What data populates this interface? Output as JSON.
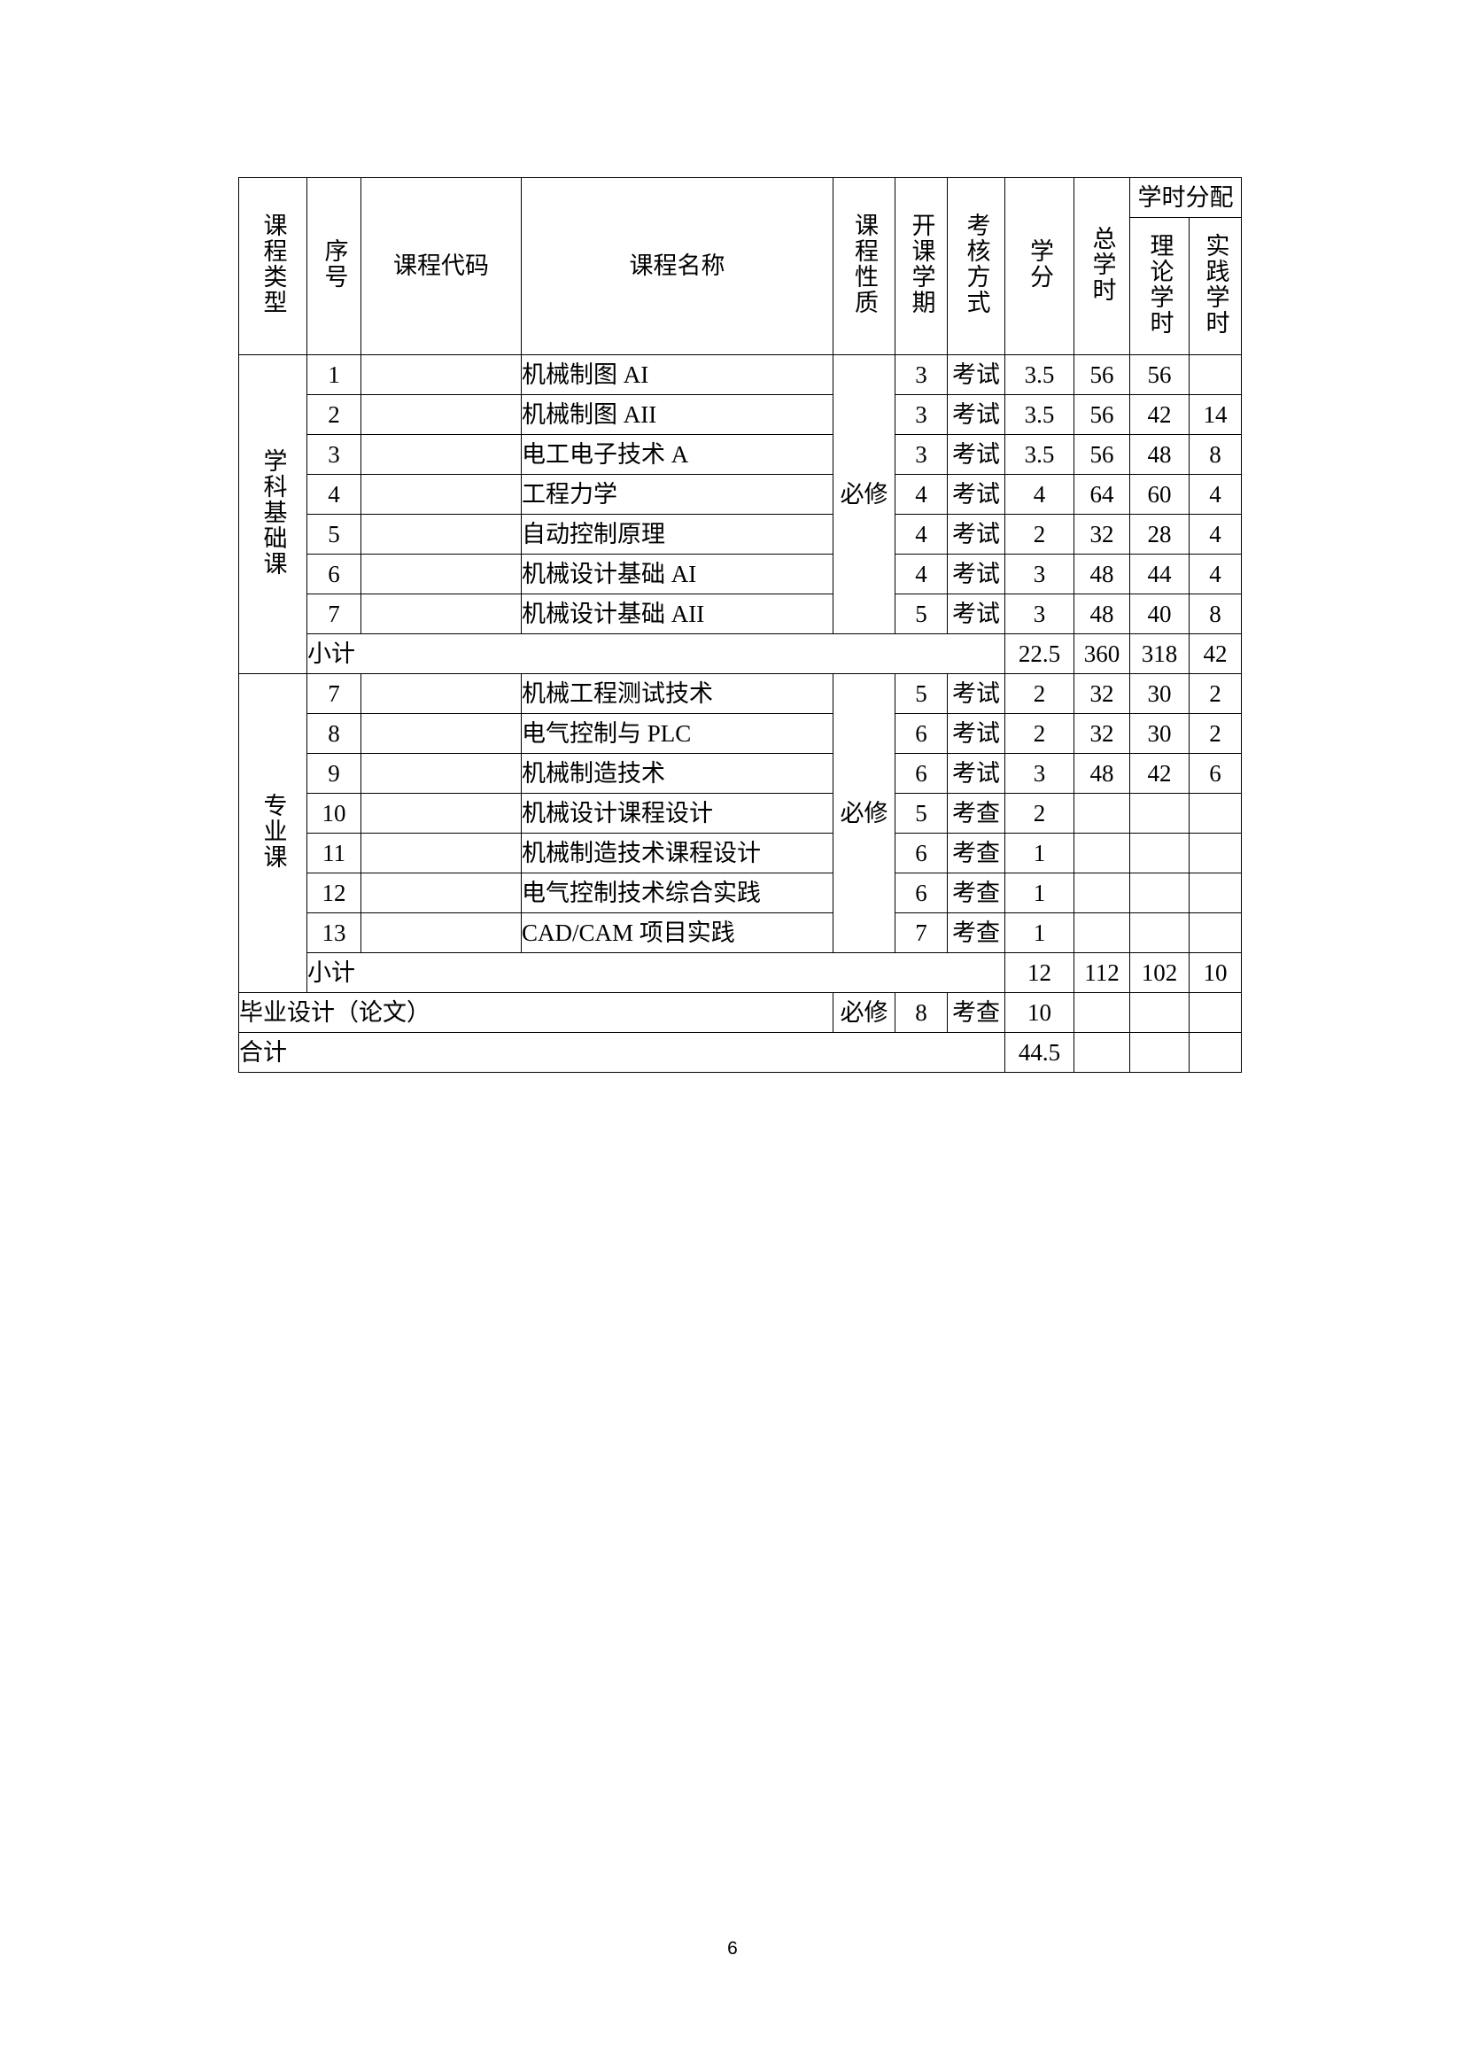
{
  "header": {
    "type": "课程类型",
    "seq": "序号",
    "code": "课程代码",
    "name": "课程名称",
    "nature": "课程性质",
    "semester": "开课学期",
    "exam": "考核方式",
    "credit": "学分",
    "total_hours": "总学时",
    "allocation": "学时分配",
    "theory": "理论学时",
    "practice": "实践学时"
  },
  "groups": [
    {
      "type": "学科基础课",
      "nature": "必修",
      "rows": [
        {
          "seq": "1",
          "code": "",
          "name": "机械制图 AI",
          "semester": "3",
          "exam": "考试",
          "credit": "3.5",
          "total": "56",
          "theory": "56",
          "practice": ""
        },
        {
          "seq": "2",
          "code": "",
          "name": "机械制图 AII",
          "semester": "3",
          "exam": "考试",
          "credit": "3.5",
          "total": "56",
          "theory": "42",
          "practice": "14"
        },
        {
          "seq": "3",
          "code": "",
          "name": "电工电子技术 A",
          "semester": "3",
          "exam": "考试",
          "credit": "3.5",
          "total": "56",
          "theory": "48",
          "practice": "8"
        },
        {
          "seq": "4",
          "code": "",
          "name": "工程力学",
          "semester": "4",
          "exam": "考试",
          "credit": "4",
          "total": "64",
          "theory": "60",
          "practice": "4"
        },
        {
          "seq": "5",
          "code": "",
          "name": "自动控制原理",
          "semester": "4",
          "exam": "考试",
          "credit": "2",
          "total": "32",
          "theory": "28",
          "practice": "4"
        },
        {
          "seq": "6",
          "code": "",
          "name": "机械设计基础 AI",
          "semester": "4",
          "exam": "考试",
          "credit": "3",
          "total": "48",
          "theory": "44",
          "practice": "4"
        },
        {
          "seq": "7",
          "code": "",
          "name": "机械设计基础 AII",
          "semester": "5",
          "exam": "考试",
          "credit": "3",
          "total": "48",
          "theory": "40",
          "practice": "8"
        }
      ],
      "subtotal": {
        "label": "小计",
        "credit": "22.5",
        "total": "360",
        "theory": "318",
        "practice": "42"
      }
    },
    {
      "type": "专业课",
      "nature": "必修",
      "rows": [
        {
          "seq": "7",
          "code": "",
          "name": "机械工程测试技术",
          "semester": "5",
          "exam": "考试",
          "credit": "2",
          "total": "32",
          "theory": "30",
          "practice": "2"
        },
        {
          "seq": "8",
          "code": "",
          "name": "电气控制与 PLC",
          "semester": "6",
          "exam": "考试",
          "credit": "2",
          "total": "32",
          "theory": "30",
          "practice": "2"
        },
        {
          "seq": "9",
          "code": "",
          "name": "机械制造技术",
          "semester": "6",
          "exam": "考试",
          "credit": "3",
          "total": "48",
          "theory": "42",
          "practice": "6"
        },
        {
          "seq": "10",
          "code": "",
          "name": "机械设计课程设计",
          "semester": "5",
          "exam": "考查",
          "credit": "2",
          "total": "",
          "theory": "",
          "practice": ""
        },
        {
          "seq": "11",
          "code": "",
          "name": "机械制造技术课程设计",
          "semester": "6",
          "exam": "考查",
          "credit": "1",
          "total": "",
          "theory": "",
          "practice": ""
        },
        {
          "seq": "12",
          "code": "",
          "name": "电气控制技术综合实践",
          "semester": "6",
          "exam": "考查",
          "credit": "1",
          "total": "",
          "theory": "",
          "practice": ""
        },
        {
          "seq": "13",
          "code": "",
          "name": "CAD/CAM 项目实践",
          "semester": "7",
          "exam": "考查",
          "credit": "1",
          "total": "",
          "theory": "",
          "practice": ""
        }
      ],
      "subtotal": {
        "label": "小计",
        "credit": "12",
        "total": "112",
        "theory": "102",
        "practice": "10"
      }
    }
  ],
  "thesis": {
    "label": "毕业设计（论文）",
    "nature": "必修",
    "semester": "8",
    "exam": "考查",
    "credit": "10",
    "total": "",
    "theory": "",
    "practice": ""
  },
  "grand_total": {
    "label": "合计",
    "credit": "44.5",
    "total": "",
    "theory": "",
    "practice": ""
  },
  "page_number": "6"
}
